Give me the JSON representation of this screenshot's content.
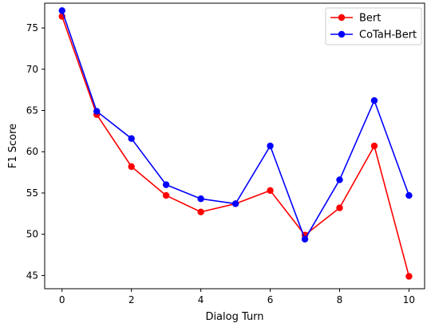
{
  "chart_data": {
    "type": "line",
    "xlabel": "Dialog Turn",
    "ylabel": "F1 Score",
    "xlim": [
      -0.5,
      10.45
    ],
    "ylim": [
      43.4,
      78.0
    ],
    "x_ticks": [
      0,
      2,
      4,
      6,
      8,
      10
    ],
    "y_ticks": [
      45,
      50,
      55,
      60,
      65,
      70,
      75
    ],
    "grid": false,
    "legend_position": "top-right",
    "x": [
      0,
      1,
      2,
      3,
      4,
      5,
      6,
      7,
      8,
      9,
      10
    ],
    "series": [
      {
        "name": "Bert",
        "color": "#ff0000",
        "values": [
          76.4,
          64.5,
          58.2,
          54.7,
          52.7,
          53.7,
          55.3,
          49.9,
          53.2,
          60.7,
          44.9
        ]
      },
      {
        "name": "CoTaH-Bert",
        "color": "#0000ff",
        "values": [
          77.1,
          64.9,
          61.6,
          56.0,
          54.3,
          53.7,
          60.7,
          49.4,
          56.6,
          66.2,
          54.7
        ]
      }
    ]
  }
}
